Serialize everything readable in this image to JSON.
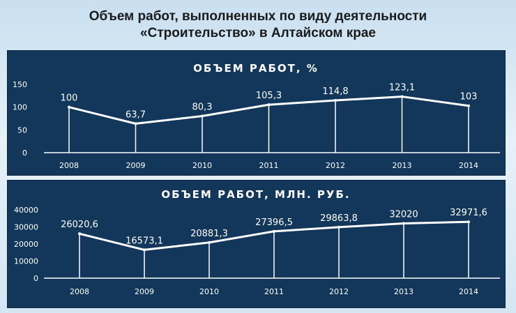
{
  "title_line1": "Объем работ, выполненных по виду деятельности",
  "title_line2": "«Строительство» в Алтайском крае",
  "chart_data": [
    {
      "type": "line",
      "title": "ОБЪЕМ РАБОТ, %",
      "categories": [
        "2008",
        "2009",
        "2010",
        "2011",
        "2012",
        "2013",
        "2014"
      ],
      "values": [
        100,
        63.7,
        80.3,
        105.3,
        114.8,
        123.1,
        103
      ],
      "labels": [
        "100",
        "63,7",
        "80,3",
        "105,3",
        "114,8",
        "123,1",
        "103"
      ],
      "yticks": [
        "0",
        "50",
        "100",
        "150"
      ],
      "ylim": [
        0,
        150
      ],
      "grid": false,
      "colors": {
        "panel": "#12375a",
        "line": "#ffffff"
      }
    },
    {
      "type": "line",
      "title": "ОБЪЕМ РАБОТ, МЛН. РУБ.",
      "categories": [
        "2008",
        "2009",
        "2010",
        "2011",
        "2012",
        "2013",
        "2014"
      ],
      "values": [
        26020.6,
        16573.1,
        20881.3,
        27396.5,
        29863.8,
        32020,
        32971.6
      ],
      "labels": [
        "26020,6",
        "16573,1",
        "20881,3",
        "27396,5",
        "29863,8",
        "32020",
        "32971,6"
      ],
      "yticks": [
        "0",
        "10000",
        "20000",
        "30000",
        "40000"
      ],
      "ylim": [
        0,
        40000
      ],
      "grid": false,
      "colors": {
        "panel": "#12375a",
        "line": "#ffffff"
      }
    }
  ]
}
